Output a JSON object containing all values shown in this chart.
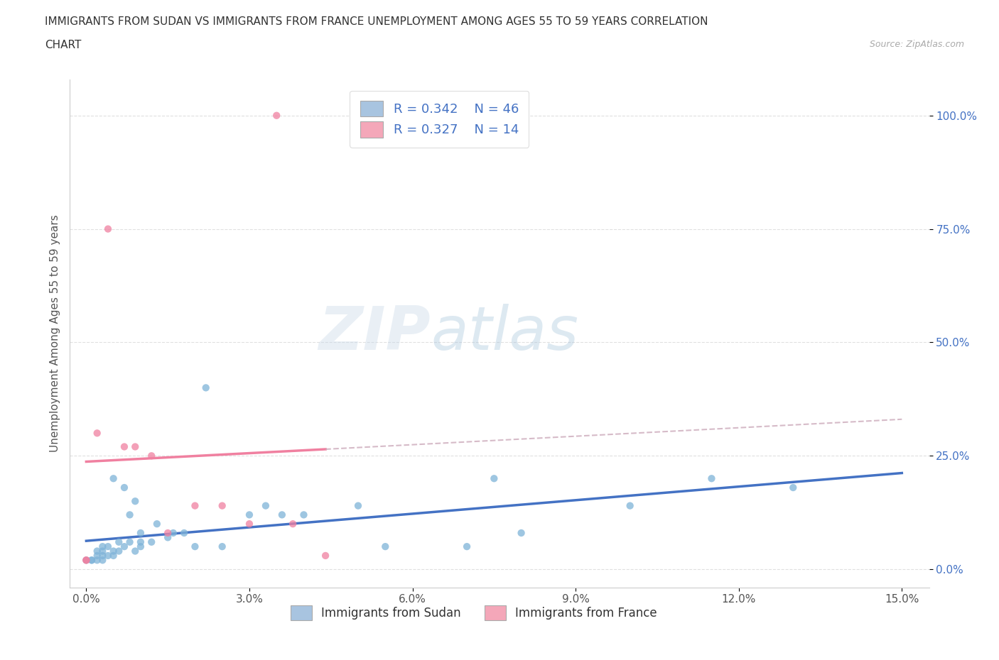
{
  "title_line1": "IMMIGRANTS FROM SUDAN VS IMMIGRANTS FROM FRANCE UNEMPLOYMENT AMONG AGES 55 TO 59 YEARS CORRELATION",
  "title_line2": "CHART",
  "source_text": "Source: ZipAtlas.com",
  "ylabel": "Unemployment Among Ages 55 to 59 years",
  "xlabel_ticks": [
    "0.0%",
    "3.0%",
    "6.0%",
    "9.0%",
    "12.0%",
    "15.0%"
  ],
  "xlabel_vals": [
    0.0,
    0.03,
    0.06,
    0.09,
    0.12,
    0.15
  ],
  "ylabel_ticks": [
    "0.0%",
    "25.0%",
    "50.0%",
    "75.0%",
    "100.0%"
  ],
  "ylabel_vals": [
    0.0,
    0.25,
    0.5,
    0.75,
    1.0
  ],
  "xlim": [
    -0.003,
    0.155
  ],
  "ylim": [
    -0.04,
    1.08
  ],
  "sudan_scatter_color": "#7eb3d8",
  "france_scatter_color": "#f080a0",
  "sudan_legend_color": "#a8c4e0",
  "france_legend_color": "#f4a7b9",
  "trendline_sudan_color": "#4472c4",
  "trendline_france_color": "#f080a0",
  "trendline_france_dashed_color": "#ccaabb",
  "watermark_text": "ZIPatlas",
  "legend_R_sudan": "R = 0.342",
  "legend_N_sudan": "N = 46",
  "legend_R_france": "R = 0.327",
  "legend_N_france": "N = 14",
  "sudan_x": [
    0.0,
    0.001,
    0.001,
    0.002,
    0.002,
    0.002,
    0.003,
    0.003,
    0.003,
    0.003,
    0.004,
    0.004,
    0.005,
    0.005,
    0.005,
    0.006,
    0.006,
    0.007,
    0.007,
    0.008,
    0.008,
    0.009,
    0.009,
    0.01,
    0.01,
    0.01,
    0.012,
    0.013,
    0.015,
    0.016,
    0.018,
    0.02,
    0.022,
    0.025,
    0.03,
    0.033,
    0.036,
    0.04,
    0.05,
    0.055,
    0.07,
    0.075,
    0.08,
    0.1,
    0.115,
    0.13
  ],
  "sudan_y": [
    0.02,
    0.02,
    0.02,
    0.02,
    0.03,
    0.04,
    0.02,
    0.03,
    0.04,
    0.05,
    0.03,
    0.05,
    0.03,
    0.04,
    0.2,
    0.04,
    0.06,
    0.05,
    0.18,
    0.06,
    0.12,
    0.04,
    0.15,
    0.05,
    0.06,
    0.08,
    0.06,
    0.1,
    0.07,
    0.08,
    0.08,
    0.05,
    0.4,
    0.05,
    0.12,
    0.14,
    0.12,
    0.12,
    0.14,
    0.05,
    0.05,
    0.2,
    0.08,
    0.14,
    0.2,
    0.18
  ],
  "france_x": [
    0.0,
    0.0,
    0.002,
    0.004,
    0.007,
    0.009,
    0.012,
    0.015,
    0.02,
    0.025,
    0.03,
    0.035,
    0.038,
    0.044
  ],
  "france_y": [
    0.02,
    0.02,
    0.3,
    0.75,
    0.27,
    0.27,
    0.25,
    0.08,
    0.14,
    0.14,
    0.1,
    1.0,
    0.1,
    0.03
  ],
  "grid_color": "#e0e0e0",
  "background_color": "#ffffff",
  "tick_color_y": "#4472c4",
  "tick_color_x": "#555555"
}
